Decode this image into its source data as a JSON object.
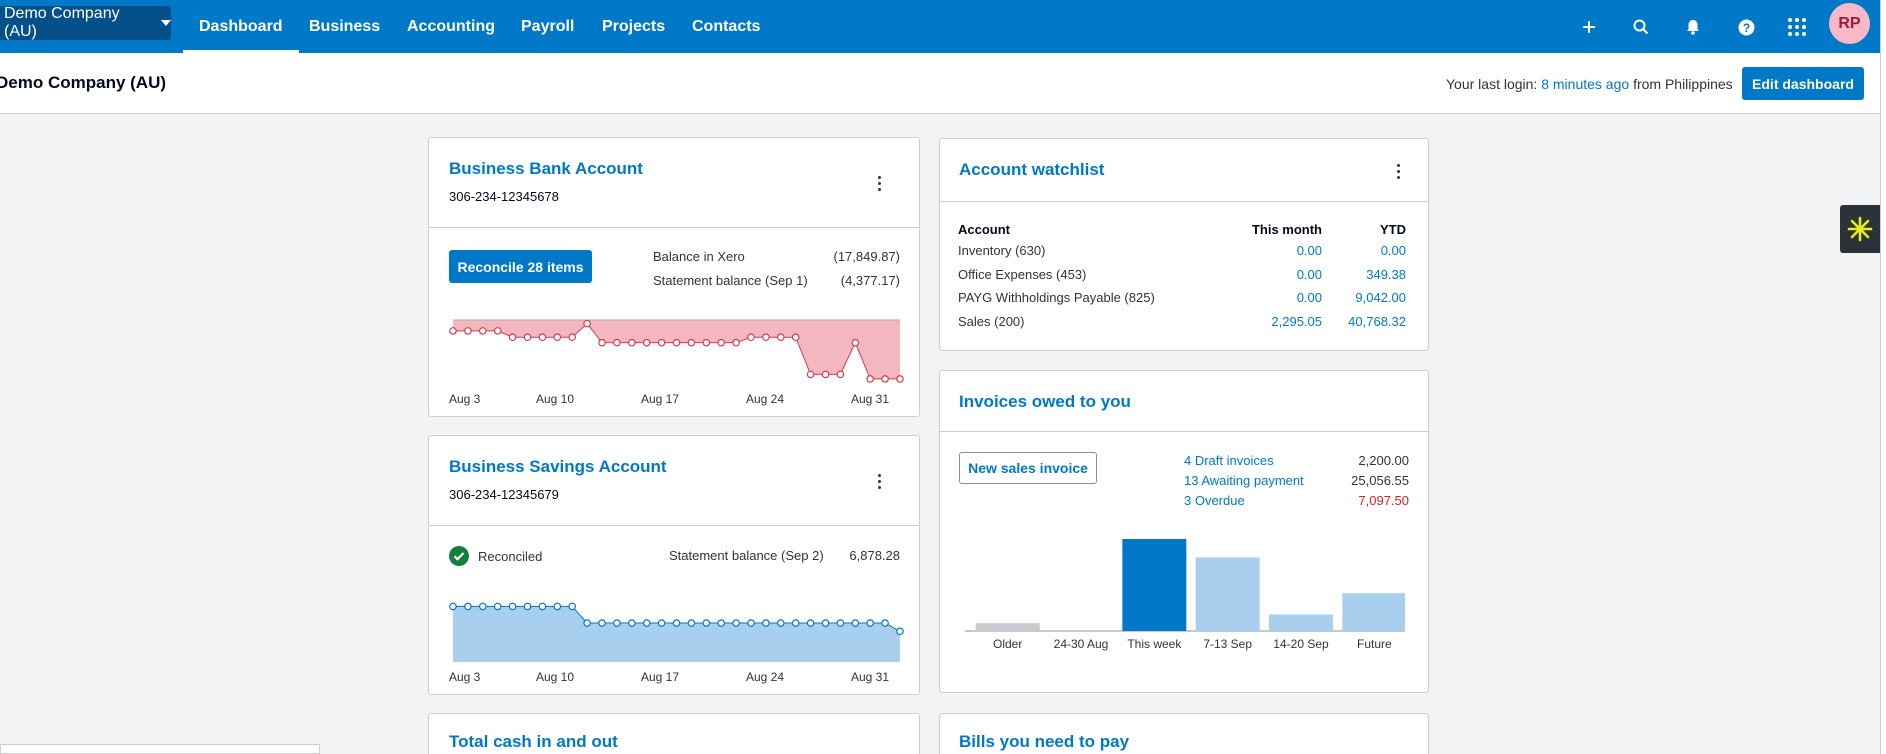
{
  "nav": {
    "org": "Demo Company (AU)",
    "tabs": [
      "Dashboard",
      "Business",
      "Accounting",
      "Payroll",
      "Projects",
      "Contacts"
    ],
    "avatar": "RP"
  },
  "header": {
    "title": "Demo Company (AU)",
    "login_prefix": "Your last login:",
    "login_time": "8 minutes ago",
    "login_suffix": "from Philippines",
    "edit_button": "Edit dashboard"
  },
  "bank": {
    "title": "Business Bank Account",
    "account_no": "306-234-12345678",
    "reconcile_button": "Reconcile 28 items",
    "balance_label": "Balance in Xero",
    "balance_value": "(17,849.87)",
    "statement_label": "Statement balance (Sep 1)",
    "statement_value": "(4,377.17)",
    "axis": [
      "Aug 3",
      "Aug 10",
      "Aug 17",
      "Aug 24",
      "Aug 31"
    ]
  },
  "savings": {
    "title": "Business Savings Account",
    "account_no": "306-234-12345679",
    "status": "Reconciled",
    "statement_label": "Statement balance (Sep 2)",
    "statement_value": "6,878.28",
    "axis": [
      "Aug 3",
      "Aug 10",
      "Aug 17",
      "Aug 24",
      "Aug 31"
    ]
  },
  "watchlist": {
    "title": "Account watchlist",
    "headers": [
      "Account",
      "This month",
      "YTD"
    ],
    "rows": [
      [
        "Inventory (630)",
        "0.00",
        "0.00"
      ],
      [
        "Office Expenses (453)",
        "0.00",
        "349.38"
      ],
      [
        "PAYG Withholdings Payable (825)",
        "0.00",
        "9,042.00"
      ],
      [
        "Sales (200)",
        "2,295.05",
        "40,768.32"
      ]
    ]
  },
  "invoices": {
    "title": "Invoices owed to you",
    "new_button": "New sales invoice",
    "summary": [
      {
        "label": "4 Draft invoices",
        "value": "2,200.00"
      },
      {
        "label": "13 Awaiting payment",
        "value": "25,056.55"
      },
      {
        "label": "3 Overdue",
        "value": "7,097.50"
      }
    ]
  },
  "total_cash": {
    "title": "Total cash in and out"
  },
  "bills": {
    "title": "Bills you need to pay"
  },
  "chart_data": [
    {
      "type": "area",
      "series": [
        {
          "values": [
            -1200,
            -1200,
            -1200,
            -1200,
            -1900,
            -1900,
            -1900,
            -1900,
            -1900,
            -400,
            -2500,
            -2500,
            -2500,
            -2500,
            -2500,
            -2500,
            -2500,
            -2500,
            -2500,
            -2500,
            -1900,
            -1900,
            -1900,
            -1900,
            -6000,
            -6000,
            -6000,
            -2500,
            -6500,
            -6500,
            -6500
          ]
        }
      ],
      "colors": {
        "fill": "#f3b7bf",
        "line": "#d9394b"
      },
      "x_ticks": [
        "Aug 3",
        "Aug 10",
        "Aug 17",
        "Aug 24",
        "Aug 31"
      ]
    },
    {
      "type": "area",
      "series": [
        {
          "values": [
            6890,
            6890,
            6890,
            6890,
            6890,
            6890,
            6890,
            6890,
            6890,
            6882,
            6882,
            6882,
            6882,
            6882,
            6882,
            6882,
            6882,
            6882,
            6882,
            6882,
            6882,
            6882,
            6882,
            6882,
            6882,
            6882,
            6882,
            6882,
            6882,
            6882,
            6878
          ]
        }
      ],
      "colors": {
        "fill": "#a8cfee",
        "line": "#0078c8"
      },
      "x_ticks": [
        "Aug 3",
        "Aug 10",
        "Aug 17",
        "Aug 24",
        "Aug 31"
      ]
    },
    {
      "type": "bar",
      "categories": [
        "Older",
        "24-30 Aug",
        "This week",
        "7-13 Sep",
        "14-20 Sep",
        "Future"
      ],
      "values": [
        800,
        0,
        9500,
        7600,
        1700,
        3900
      ],
      "colors": [
        "#c8ccd0",
        "#c8ccd0",
        "#0078c8",
        "#a9cfee",
        "#a9cfee",
        "#a9cfee"
      ]
    }
  ]
}
